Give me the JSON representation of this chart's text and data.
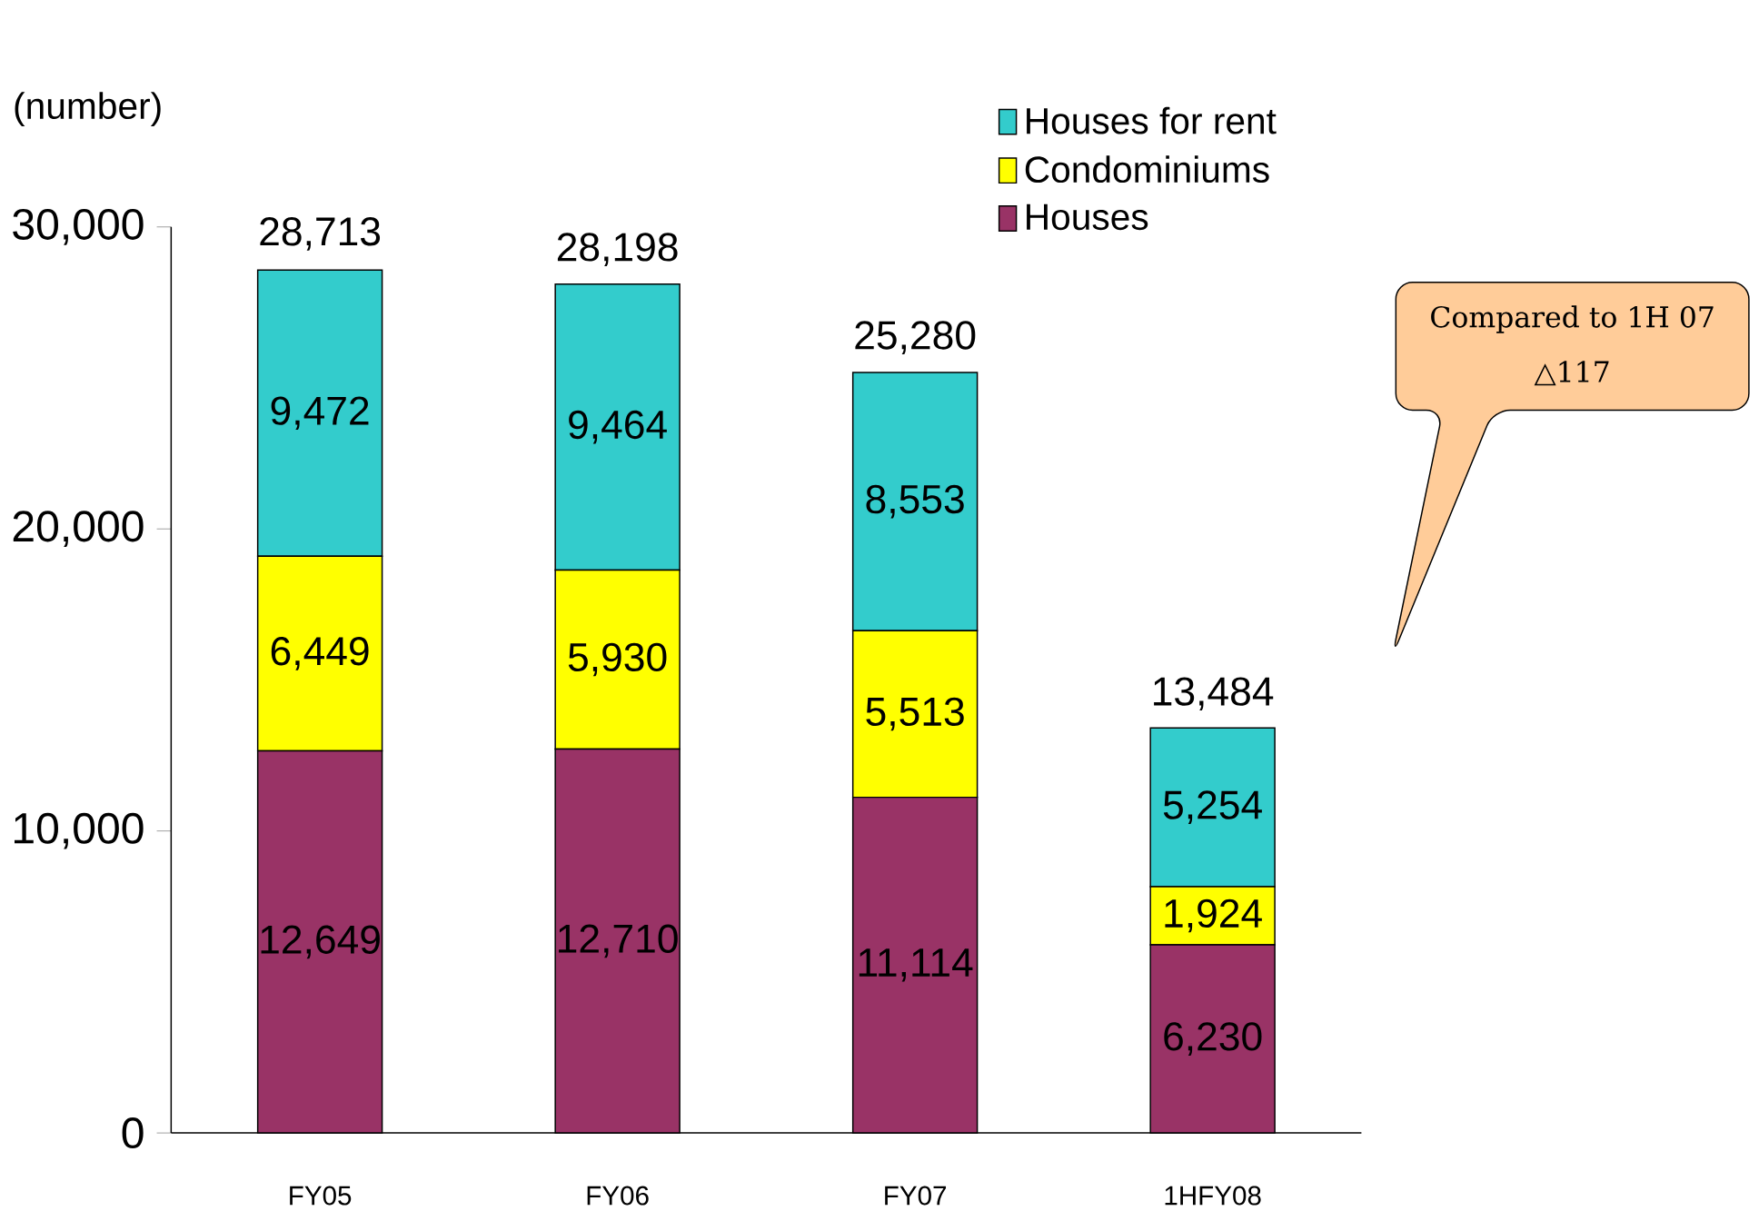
{
  "chart_data": {
    "type": "bar",
    "stacked": true,
    "ylabel": "(number)",
    "categories": [
      "FY05",
      "FY06",
      "FY07",
      "1HFY08"
    ],
    "series": [
      {
        "name": "Houses",
        "color": "#993366",
        "values": [
          12649,
          12710,
          11114,
          6230
        ],
        "value_labels": [
          "12,649",
          "12,710",
          "11,114",
          "6,230"
        ]
      },
      {
        "name": "Condominiums",
        "color": "#ffff00",
        "values": [
          6449,
          5930,
          5513,
          1924
        ],
        "value_labels": [
          "6,449",
          "5,930",
          "5,513",
          "1,924"
        ]
      },
      {
        "name": "Houses for rent",
        "color": "#33cccc",
        "values": [
          9472,
          9464,
          8553,
          5254
        ],
        "value_labels": [
          "9,472",
          "9,464",
          "8,553",
          "5,254"
        ]
      }
    ],
    "ylim": [
      0,
      30000
    ],
    "yticks": [
      0,
      {
        "value": 10000,
        "label": "10,000"
      },
      {
        "value": 20000,
        "label": "20,000"
      },
      {
        "value": 30000,
        "label": "30,000"
      }
    ],
    "legend": "top right",
    "annotations": [
      "Compared to 1H 07",
      "△117",
      {
        "text": "28,713",
        "x": "FY05",
        "y": 28713
      },
      {
        "text": "28,198",
        "x": "FY06",
        "y": 28198
      },
      {
        "text": "25,280",
        "x": "FY07",
        "y": 25280
      },
      {
        "text": "13,484",
        "x": "1HFY08",
        "y": 13484
      }
    ]
  }
}
